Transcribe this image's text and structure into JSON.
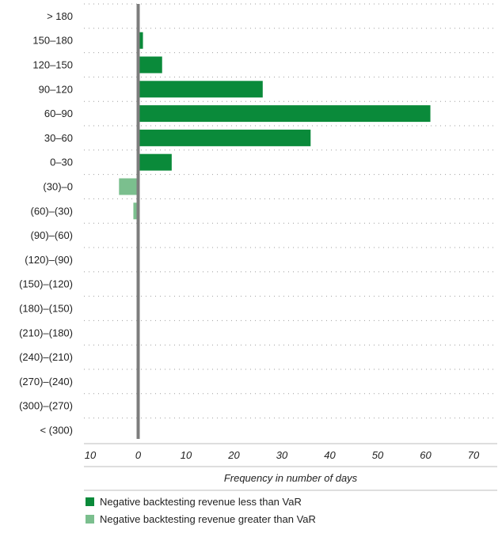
{
  "chart_data": {
    "type": "bar",
    "orientation": "horizontal",
    "categories": [
      "> 180",
      "150–180",
      "120–150",
      "90–120",
      "60–90",
      "30–60",
      "0–30",
      "(30)–0",
      "(60)–(30)",
      "(90)–(60)",
      "(120)–(90)",
      "(150)–(120)",
      "(180)–(150)",
      "(210)–(180)",
      "(240)–(210)",
      "(270)–(240)",
      "(300)–(270)",
      "< (300)"
    ],
    "series": [
      {
        "name": "Negative backtesting revenue less than VaR",
        "color": "#0a8a3a",
        "values": [
          0,
          1,
          5,
          26,
          61,
          36,
          7,
          0,
          0,
          0,
          0,
          0,
          0,
          0,
          0,
          0,
          0,
          0
        ]
      },
      {
        "name": "Negative backtesting revenue greater than VaR",
        "color": "#7bbf8e",
        "values": [
          0,
          0,
          0,
          0,
          0,
          0,
          0,
          -4,
          -1,
          0,
          0,
          0,
          0,
          0,
          0,
          0,
          0,
          0
        ]
      }
    ],
    "xticks": [
      -10,
      0,
      10,
      20,
      30,
      40,
      50,
      60,
      70
    ],
    "xtick_labels": [
      "10",
      "0",
      "10",
      "20",
      "30",
      "40",
      "50",
      "60",
      "70"
    ],
    "xlim": [
      -10,
      70
    ],
    "xlabel": "Frequency in number of days",
    "title": "",
    "grid": true,
    "legend_position": "bottom-left"
  }
}
